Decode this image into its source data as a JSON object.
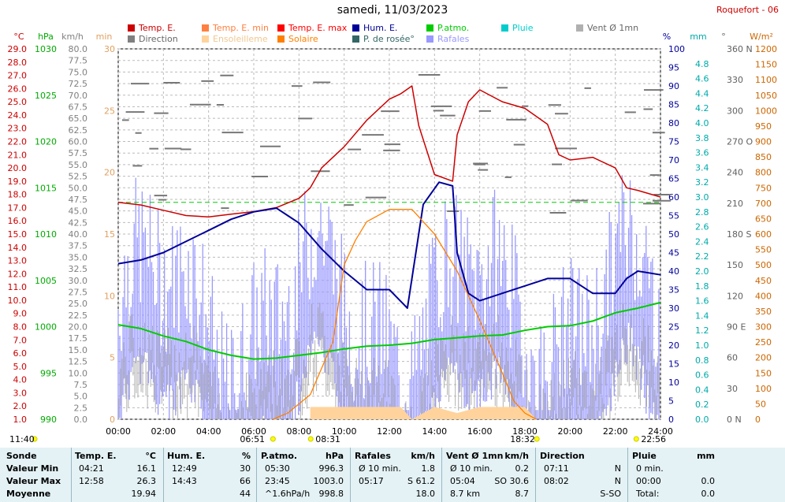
{
  "title": "samedi, 11/03/2023",
  "station": "Roquefort - 06",
  "legend": [
    {
      "label": "Temp. E.",
      "color": "#cc0000"
    },
    {
      "label": "Direction",
      "color": "#808080"
    },
    {
      "label": "Temp. E. min",
      "color": "#ff8040"
    },
    {
      "label": "Ensoleilleme",
      "color": "#ffd39b"
    },
    {
      "label": "Temp. E. max",
      "color": "#ff0000"
    },
    {
      "label": "Solaire",
      "color": "#ff8000"
    },
    {
      "label": "Hum. E.",
      "color": "#000099"
    },
    {
      "label": "P. de rosée°",
      "color": "#336666"
    },
    {
      "label": "P.atmo.",
      "color": "#00cc00"
    },
    {
      "label": "Rafales",
      "color": "#9999ff"
    },
    {
      "label": "Pluie",
      "color": "#00cccc"
    },
    {
      "label": "Vent Ø 1mn",
      "color": "#b0b0b0"
    }
  ],
  "axes": {
    "temp": {
      "unit": "°C",
      "ticks": [
        "29.0",
        "28.0",
        "27.0",
        "26.0",
        "25.0",
        "24.0",
        "23.0",
        "22.0",
        "21.0",
        "20.0",
        "19.0",
        "18.0",
        "17.0",
        "16.0",
        "15.0",
        "14.0",
        "13.0",
        "12.0",
        "11.0",
        "10.0",
        "9.0",
        "8.0",
        "7.0",
        "6.0",
        "5.0",
        "4.0",
        "3.0",
        "2.0",
        "1.0"
      ],
      "color": "#cc0000"
    },
    "pressure": {
      "unit": "hPa",
      "ticks": [
        "1030",
        "1025",
        "1020",
        "1015",
        "1010",
        "1005",
        "1000",
        "995",
        "990"
      ],
      "color": "#00aa00"
    },
    "wind": {
      "unit": "km/h",
      "ticks": [
        "80.0",
        "77.5",
        "75.0",
        "72.5",
        "70.0",
        "67.5",
        "65.0",
        "62.5",
        "60.0",
        "57.5",
        "55.0",
        "52.5",
        "50.0",
        "47.5",
        "45.0",
        "42.5",
        "40.0",
        "37.5",
        "35.0",
        "32.5",
        "30.0",
        "27.5",
        "25.0",
        "22.5",
        "20.0",
        "17.5",
        "15.0",
        "12.5",
        "10.0",
        "7.5",
        "5.0",
        "2.5",
        "0.0"
      ],
      "color": "#808080"
    },
    "sun": {
      "unit": "min",
      "ticks": [
        "30",
        "25",
        "20",
        "15",
        "10",
        "5",
        "0"
      ],
      "color": "#e0a060"
    },
    "humidity": {
      "unit": "%",
      "ticks": [
        "100",
        "95",
        "90",
        "85",
        "80",
        "75",
        "70",
        "65",
        "60",
        "55",
        "50",
        "45",
        "40",
        "35",
        "30",
        "25",
        "20",
        "15",
        "10",
        "5",
        "0"
      ],
      "color": "#000099"
    },
    "rain": {
      "unit": "mm",
      "ticks": [
        "4.8",
        "4.6",
        "4.4",
        "4.2",
        "4.0",
        "3.8",
        "3.6",
        "3.4",
        "3.2",
        "3.0",
        "2.8",
        "2.6",
        "2.4",
        "2.2",
        "2.0",
        "1.8",
        "1.6",
        "1.4",
        "1.2",
        "1.0",
        "0.8",
        "0.6",
        "0.4",
        "0.2",
        "0.0"
      ],
      "color": "#00aaaa"
    },
    "direction": {
      "unit": "°",
      "ticks": [
        "360 N",
        "330",
        "300",
        "270 O",
        "240",
        "210",
        "180 S",
        "150",
        "120",
        "90 E",
        "60",
        "30",
        "0 N"
      ],
      "color": "#606060"
    },
    "solar": {
      "unit": "W/m²",
      "ticks": [
        "1200",
        "1150",
        "1100",
        "1050",
        "1000",
        "950",
        "900",
        "850",
        "800",
        "750",
        "700",
        "650",
        "600",
        "550",
        "500",
        "450",
        "400",
        "350",
        "300",
        "250",
        "200",
        "150",
        "100",
        "50",
        "0"
      ],
      "color": "#cc6600"
    },
    "time": {
      "ticks": [
        "00:00",
        "02:00",
        "04:00",
        "06:00",
        "08:00",
        "10:00",
        "12:00",
        "14:00",
        "16:00",
        "18:00",
        "20:00",
        "22:00",
        "24:00"
      ]
    }
  },
  "markers": [
    {
      "label": "11:40"
    },
    {
      "label": "06:51"
    },
    {
      "label": "08:31"
    },
    {
      "label": "18:32"
    },
    {
      "label": "22:56"
    }
  ],
  "summary": {
    "headers": {
      "sonde": "Sonde",
      "temp": "Temp. E.",
      "temp_unit": "°C",
      "hum": "Hum. E.",
      "hum_unit": "%",
      "patmo": "P.atmo.",
      "patmo_unit": "hPa",
      "rafales": "Rafales",
      "rafales_unit": "km/h",
      "vent": "Vent Ø 1mn",
      "vent_unit": "km/h",
      "direction": "Direction",
      "pluie": "Pluie",
      "pluie_unit": "mm"
    },
    "rows": [
      {
        "name": "Valeur Min",
        "temp_t": "04:21",
        "temp_v": "16.1",
        "hum_t": "12:49",
        "hum_v": "30",
        "patmo_t": "05:30",
        "patmo_v": "996.3",
        "raf_t": "Ø 10 min.",
        "raf_v": "1.8",
        "vent_t": "Ø 10 min.",
        "vent_v": "0.2",
        "dir_t": "07:11",
        "dir_v": "N",
        "pluie_t": "0 min.",
        "pluie_v": ""
      },
      {
        "name": "Valeur Max",
        "temp_t": "12:58",
        "temp_v": "26.3",
        "hum_t": "14:43",
        "hum_v": "66",
        "patmo_t": "23:45",
        "patmo_v": "1003.0",
        "raf_t": "05:17",
        "raf_v": "S 61.2",
        "vent_t": "05:04",
        "vent_v": "SO 30.6",
        "dir_t": "08:02",
        "dir_v": "N",
        "pluie_t": "00:00",
        "pluie_v": "0.0"
      },
      {
        "name": "Moyenne",
        "temp_t": "",
        "temp_v": "19.94",
        "hum_t": "",
        "hum_v": "44",
        "patmo_t": "^1.6hPa/h",
        "patmo_v": "998.8",
        "raf_t": "",
        "raf_v": "18.0",
        "vent_t": "8.7 km",
        "vent_v": "8.7",
        "dir_t": "",
        "dir_v": "S-SO",
        "pluie_t": "Total:",
        "pluie_v": "0.0"
      }
    ]
  },
  "chart_data": {
    "type": "line",
    "title": "samedi, 11/03/2023",
    "x_range": [
      "00:00",
      "24:00"
    ],
    "series": [
      {
        "name": "Temp. E.",
        "unit": "°C",
        "color": "#cc0000",
        "points": [
          [
            0,
            17.4
          ],
          [
            1,
            17.2
          ],
          [
            2,
            16.8
          ],
          [
            3,
            16.4
          ],
          [
            4,
            16.3
          ],
          [
            5,
            16.5
          ],
          [
            6,
            16.7
          ],
          [
            7,
            17.0
          ],
          [
            8,
            17.7
          ],
          [
            8.5,
            18.5
          ],
          [
            9,
            20.0
          ],
          [
            10,
            21.6
          ],
          [
            11,
            23.6
          ],
          [
            12,
            25.2
          ],
          [
            12.5,
            25.6
          ],
          [
            13,
            26.2
          ],
          [
            13.3,
            23.2
          ],
          [
            14,
            19.5
          ],
          [
            14.8,
            19.0
          ],
          [
            15,
            22.5
          ],
          [
            15.3,
            24.0
          ],
          [
            15.5,
            25.0
          ],
          [
            16,
            25.9
          ],
          [
            17,
            25.0
          ],
          [
            18,
            24.5
          ],
          [
            19,
            23.3
          ],
          [
            19.5,
            21.0
          ],
          [
            20,
            20.6
          ],
          [
            21,
            20.8
          ],
          [
            22,
            20.0
          ],
          [
            22.5,
            18.5
          ],
          [
            23,
            18.3
          ],
          [
            24,
            17.8
          ]
        ]
      },
      {
        "name": "Hum. E.",
        "unit": "%",
        "color": "#000099",
        "points": [
          [
            0,
            42
          ],
          [
            1,
            43
          ],
          [
            2,
            45
          ],
          [
            3,
            48
          ],
          [
            4,
            51
          ],
          [
            5,
            54
          ],
          [
            6,
            56
          ],
          [
            7,
            57
          ],
          [
            7.5,
            55
          ],
          [
            8,
            53
          ],
          [
            9,
            46
          ],
          [
            10,
            40
          ],
          [
            11,
            35
          ],
          [
            12,
            35
          ],
          [
            12.8,
            30
          ],
          [
            13.5,
            58
          ],
          [
            14.2,
            64
          ],
          [
            14.8,
            63
          ],
          [
            15,
            45
          ],
          [
            15.5,
            34
          ],
          [
            16,
            32
          ],
          [
            17,
            34
          ],
          [
            18,
            36
          ],
          [
            19,
            38
          ],
          [
            20,
            38
          ],
          [
            21,
            34
          ],
          [
            22,
            34
          ],
          [
            22.5,
            38
          ],
          [
            23,
            40
          ],
          [
            24,
            39
          ]
        ]
      },
      {
        "name": "P.atmo.",
        "unit": "hPa",
        "color": "#00cc00",
        "points": [
          [
            0,
            1000.2
          ],
          [
            1,
            999.8
          ],
          [
            2,
            999.0
          ],
          [
            3,
            998.4
          ],
          [
            4,
            997.5
          ],
          [
            5,
            996.9
          ],
          [
            6,
            996.5
          ],
          [
            7,
            996.6
          ],
          [
            8,
            996.9
          ],
          [
            9,
            997.2
          ],
          [
            10,
            997.6
          ],
          [
            11,
            997.9
          ],
          [
            12,
            998.0
          ],
          [
            13,
            998.2
          ],
          [
            14,
            998.6
          ],
          [
            15,
            998.8
          ],
          [
            16,
            999.0
          ],
          [
            17,
            999.1
          ],
          [
            18,
            999.6
          ],
          [
            19,
            1000.0
          ],
          [
            20,
            1000.1
          ],
          [
            21,
            1000.6
          ],
          [
            22,
            1001.5
          ],
          [
            23,
            1002.0
          ],
          [
            24,
            1002.6
          ]
        ]
      },
      {
        "name": "Solaire",
        "unit": "W/m²",
        "color": "#ff8000",
        "points": [
          [
            6.85,
            0
          ],
          [
            7.5,
            20
          ],
          [
            8.5,
            80
          ],
          [
            9.5,
            250
          ],
          [
            10,
            500
          ],
          [
            10.5,
            580
          ],
          [
            11,
            640
          ],
          [
            12,
            680
          ],
          [
            13,
            680
          ],
          [
            14,
            600
          ],
          [
            15,
            480
          ],
          [
            16,
            320
          ],
          [
            17,
            150
          ],
          [
            17.5,
            60
          ],
          [
            18,
            20
          ],
          [
            18.5,
            0
          ]
        ]
      },
      {
        "name": "Ensoleilleme",
        "unit": "min",
        "color": "#ffd39b",
        "points": [
          [
            8.5,
            1
          ],
          [
            12.5,
            1
          ],
          [
            13,
            0
          ],
          [
            14,
            1
          ],
          [
            15,
            0.5
          ],
          [
            16,
            1
          ],
          [
            18,
            1
          ],
          [
            18.5,
            0
          ]
        ]
      }
    ],
    "sunrise": "06:51",
    "sunset": "18:32"
  }
}
